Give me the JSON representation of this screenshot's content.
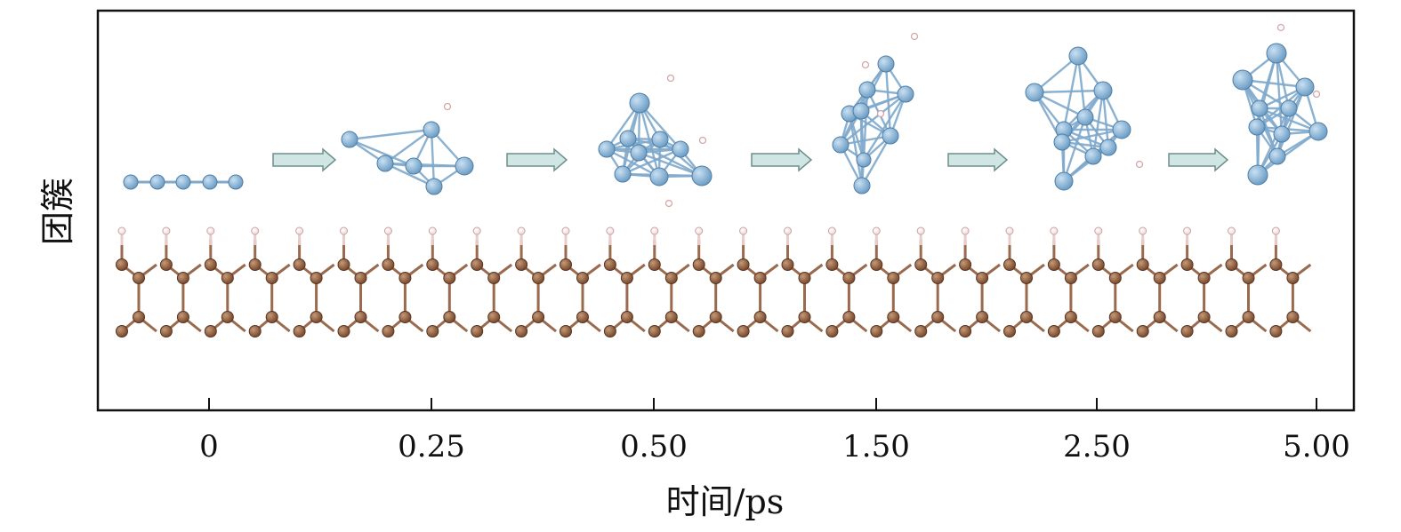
{
  "figure": {
    "y_label": "团簇",
    "x_label": "时间/ps",
    "x_tick_labels": [
      "0",
      "0.25",
      "0.50",
      "1.50",
      "2.50",
      "5.00"
    ]
  },
  "colors": {
    "cluster_atom": "#6f9fc6",
    "cluster_bond": "#7fa9cc",
    "substrate_atom": "#7a4a2e",
    "substrate_bond": "#9a6a4e",
    "hydrogen": "#f2d9d9",
    "arrow_fill": "#cfe6e4",
    "arrow_stroke": "#6f8f8c",
    "frame": "#111111"
  },
  "icons": {
    "arrow": "right-arrow-icon",
    "cluster": "atom-cluster-icon",
    "substrate": "graphene-ribbon-icon"
  }
}
